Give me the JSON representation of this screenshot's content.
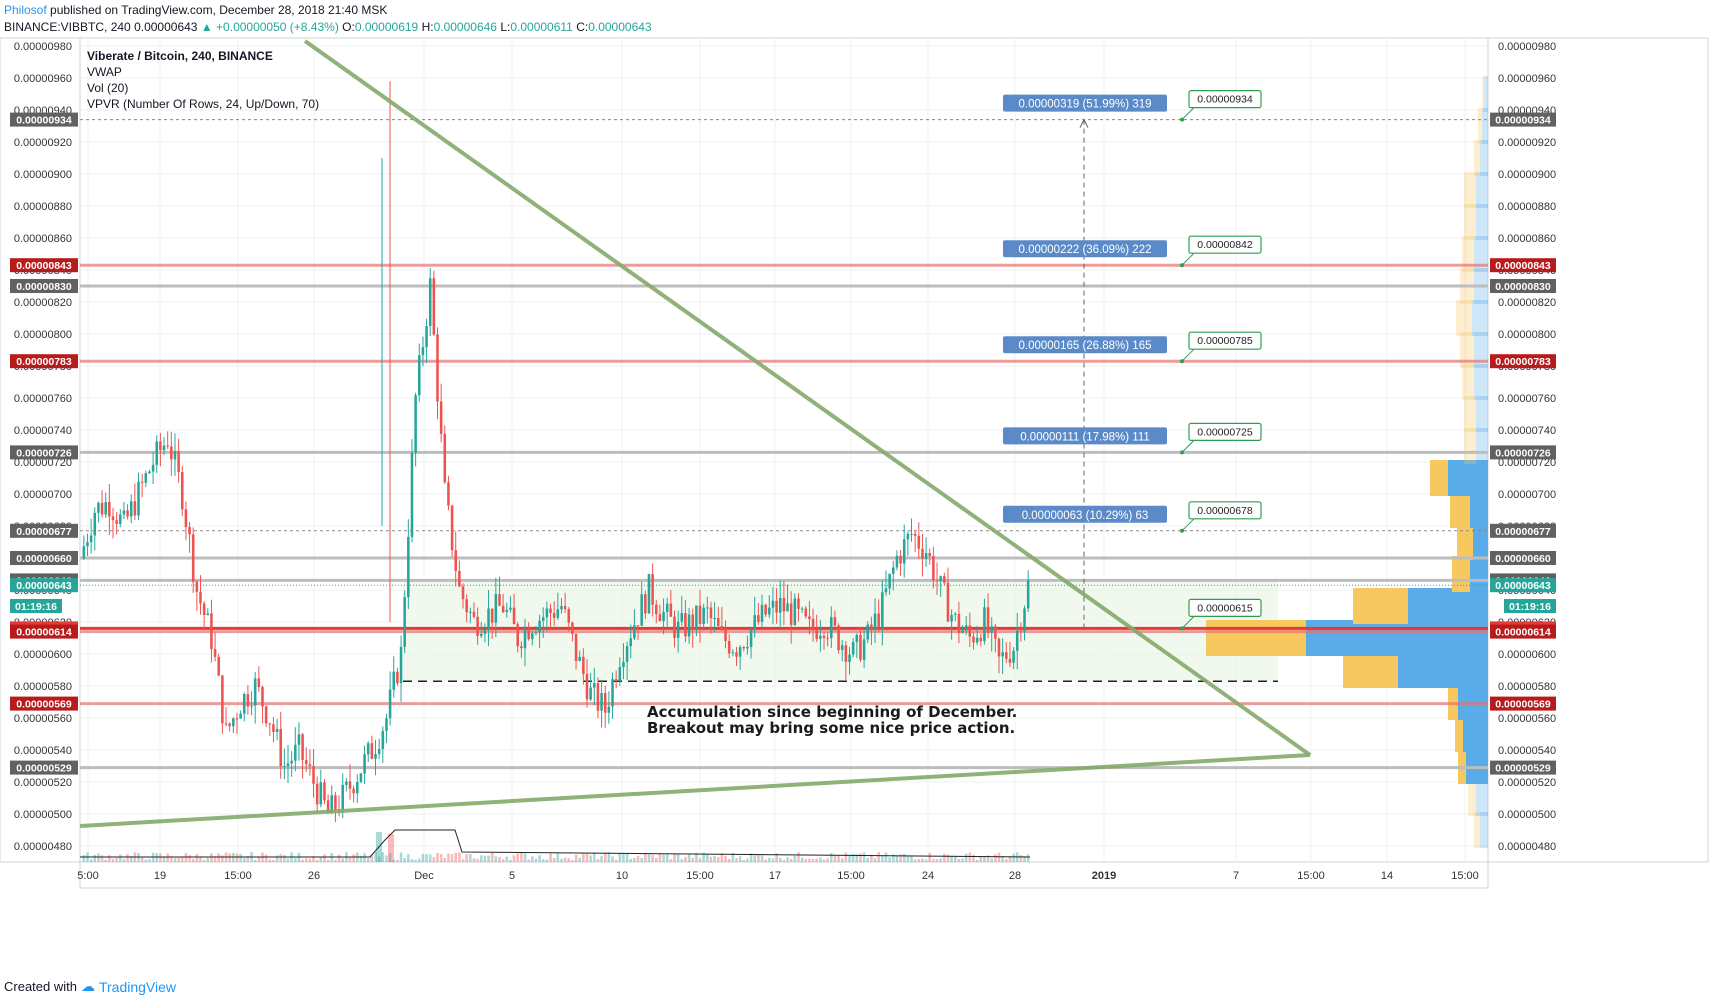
{
  "header": {
    "author": "Philosof",
    "published": "published on TradingView.com, December 28, 2018 21:40 MSK",
    "symbol": "BINANCE:VIBBTC, 240",
    "last": "0.00000643",
    "change": "+0.00000050 (+8.43%)",
    "o_label": "O:",
    "o": "0.00000619",
    "h_label": "H:",
    "h": "0.00000646",
    "l_label": "L:",
    "l": "0.00000611",
    "c_label": "C:",
    "c": "0.00000643"
  },
  "footer": {
    "created": "Created with",
    "brand": "TradingView"
  },
  "legend": [
    "Viberate / Bitcoin, 240, BINANCE",
    "VWAP",
    "Vol (20)",
    "VPVR (Number Of Rows, 24, Up/Down, 70)"
  ],
  "note": [
    "Accumulation since beginning of December.",
    "Breakout may bring some nice price action."
  ],
  "colors": {
    "up": "#26a69a",
    "down": "#ef5350",
    "trend": "#85aa6a",
    "red_level": "#e57373",
    "grey_level": "#bdbdbd",
    "label_blue": "#5b8ac8",
    "green_tag": "#2e9e4f",
    "vp_blue": "#5aace8",
    "vp_yellow": "#f6c85f"
  },
  "chart_data": {
    "type": "candlestick",
    "title": "Viberate / Bitcoin, 240, BINANCE",
    "ylim": [
      4.7e-06,
      9.85e-06
    ],
    "y_ticks": [
      "0.00000980",
      "0.00000960",
      "0.00000940",
      "0.00000920",
      "0.00000900",
      "0.00000880",
      "0.00000860",
      "0.00000840",
      "0.00000820",
      "0.00000800",
      "0.00000780",
      "0.00000760",
      "0.00000740",
      "0.00000720",
      "0.00000700",
      "0.00000680",
      "0.00000660",
      "0.00000640",
      "0.00000620",
      "0.00000600",
      "0.00000580",
      "0.00000560",
      "0.00000540",
      "0.00000520",
      "0.00000500",
      "0.00000480"
    ],
    "x_ticks": [
      "5:00",
      "19",
      "15:00",
      "26",
      "Dec",
      "5",
      "10",
      "15:00",
      "17",
      "15:00",
      "24",
      "28",
      "2019",
      "7",
      "15:00",
      "14",
      "15:00"
    ],
    "last_time": "01:19:16",
    "price_path": [
      [
        0,
        6.6e-06
      ],
      [
        1,
        6.9e-06
      ],
      [
        2,
        6.95e-06
      ],
      [
        3,
        6.8e-06
      ],
      [
        4,
        7e-06
      ],
      [
        5,
        7.2e-06
      ],
      [
        6,
        7.35e-06
      ],
      [
        7,
        7e-06
      ],
      [
        8,
        6.4e-06
      ],
      [
        9,
        6.1e-06
      ],
      [
        10,
        5.5e-06
      ],
      [
        11,
        5.7e-06
      ],
      [
        12,
        5.8e-06
      ],
      [
        13,
        5.6e-06
      ],
      [
        14,
        5.3e-06
      ],
      [
        15,
        5.4e-06
      ],
      [
        16,
        5.2e-06
      ],
      [
        17,
        5e-06
      ],
      [
        18,
        5.1e-06
      ],
      [
        19,
        5.25e-06
      ],
      [
        20,
        5.4e-06
      ],
      [
        21,
        5.6e-06
      ],
      [
        22,
        6e-06
      ],
      [
        23,
        7.6e-06
      ],
      [
        24,
        8.3e-06
      ],
      [
        25,
        7e-06
      ],
      [
        26,
        6.4e-06
      ],
      [
        27,
        6.2e-06
      ],
      [
        28,
        6.25e-06
      ],
      [
        29,
        6.3e-06
      ],
      [
        30,
        6.1e-06
      ],
      [
        31,
        6.2e-06
      ],
      [
        32,
        6.25e-06
      ],
      [
        33,
        6.3e-06
      ],
      [
        34,
        6e-06
      ],
      [
        35,
        5.75e-06
      ],
      [
        36,
        5.65e-06
      ],
      [
        37,
        6e-06
      ],
      [
        38,
        6.2e-06
      ],
      [
        39,
        6.4e-06
      ],
      [
        40,
        6.25e-06
      ],
      [
        41,
        6.15e-06
      ],
      [
        42,
        6.2e-06
      ],
      [
        43,
        6.25e-06
      ],
      [
        44,
        6.1e-06
      ],
      [
        45,
        6.05e-06
      ],
      [
        46,
        6.15e-06
      ],
      [
        47,
        6.25e-06
      ],
      [
        48,
        6.3e-06
      ],
      [
        49,
        6.25e-06
      ],
      [
        50,
        6.15e-06
      ],
      [
        51,
        6.2e-06
      ],
      [
        52,
        6.1e-06
      ],
      [
        53,
        6e-06
      ],
      [
        54,
        6.1e-06
      ],
      [
        55,
        6.3e-06
      ],
      [
        56,
        6.6e-06
      ],
      [
        57,
        6.75e-06
      ],
      [
        58,
        6.65e-06
      ],
      [
        59,
        6.4e-06
      ],
      [
        60,
        6.2e-06
      ],
      [
        61,
        6.1e-06
      ],
      [
        62,
        6.2e-06
      ],
      [
        63,
        5.95e-06
      ],
      [
        64,
        6.05e-06
      ],
      [
        65,
        6.43e-06
      ]
    ],
    "levels": [
      {
        "price": "0.00000934",
        "style": "dotted"
      },
      {
        "price": "0.00000843",
        "style": "red"
      },
      {
        "price": "0.00000830",
        "style": "grey"
      },
      {
        "price": "0.00000783",
        "style": "red"
      },
      {
        "price": "0.00000726",
        "style": "grey"
      },
      {
        "price": "0.00000677",
        "style": "dotted"
      },
      {
        "price": "0.00000660",
        "style": "grey"
      },
      {
        "price": "0.00000646",
        "style": "grey"
      },
      {
        "price": "0.00000643",
        "style": "current"
      },
      {
        "price": "0.00000616",
        "style": "main"
      },
      {
        "price": "0.00000614",
        "style": "red"
      },
      {
        "price": "0.00000569",
        "style": "red"
      },
      {
        "price": "0.00000529",
        "style": "grey"
      }
    ],
    "range_box": {
      "top": 6.46e-06,
      "bottom": 5.83e-06
    },
    "targets": [
      {
        "label": "0.00000319 (51.99%) 319",
        "tag": "0.00000934",
        "price": 9.34e-06
      },
      {
        "label": "0.00000222 (36.09%) 222",
        "tag": "0.00000842",
        "price": 8.43e-06
      },
      {
        "label": "0.00000165 (26.88%) 165",
        "tag": "0.00000785",
        "price": 7.83e-06
      },
      {
        "label": "0.00000111 (17.98%) 111",
        "tag": "0.00000725",
        "price": 7.26e-06
      },
      {
        "label": "0.00000063 (10.29%) 63",
        "tag": "0.00000678",
        "price": 6.77e-06
      },
      {
        "label": "",
        "tag": "0.00000615",
        "price": 6.16e-06
      }
    ],
    "volume_profile": [
      {
        "price": 4.9e-06,
        "up": 8,
        "down": 6
      },
      {
        "price": 5.1e-06,
        "up": 12,
        "down": 8
      },
      {
        "price": 5.3e-06,
        "up": 22,
        "down": 8
      },
      {
        "price": 5.5e-06,
        "up": 25,
        "down": 8
      },
      {
        "price": 5.7e-06,
        "up": 30,
        "down": 10
      },
      {
        "price": 5.9e-06,
        "up": 90,
        "down": 55
      },
      {
        "price": 6.1e-06,
        "up": 182,
        "down": 100
      },
      {
        "price": 6.3e-06,
        "up": 80,
        "down": 55
      },
      {
        "price": 6.5e-06,
        "up": 18,
        "down": 18
      },
      {
        "price": 6.7e-06,
        "up": 15,
        "down": 16
      },
      {
        "price": 6.9e-06,
        "up": 18,
        "down": 20
      },
      {
        "price": 7.1e-06,
        "up": 40,
        "down": 18
      },
      {
        "price": 7.3e-06,
        "up": 12,
        "down": 12
      },
      {
        "price": 7.5e-06,
        "up": 12,
        "down": 12
      },
      {
        "price": 7.7e-06,
        "up": 14,
        "down": 12
      },
      {
        "price": 7.9e-06,
        "up": 14,
        "down": 14
      },
      {
        "price": 8.1e-06,
        "up": 16,
        "down": 16
      },
      {
        "price": 8.3e-06,
        "up": 14,
        "down": 14
      },
      {
        "price": 8.5e-06,
        "up": 14,
        "down": 12
      },
      {
        "price": 8.7e-06,
        "up": 12,
        "down": 12
      },
      {
        "price": 8.9e-06,
        "up": 12,
        "down": 12
      },
      {
        "price": 9.1e-06,
        "up": 8,
        "down": 6
      },
      {
        "price": 9.3e-06,
        "up": 6,
        "down": 4
      },
      {
        "price": 9.5e-06,
        "up": 4,
        "down": 2
      }
    ]
  }
}
